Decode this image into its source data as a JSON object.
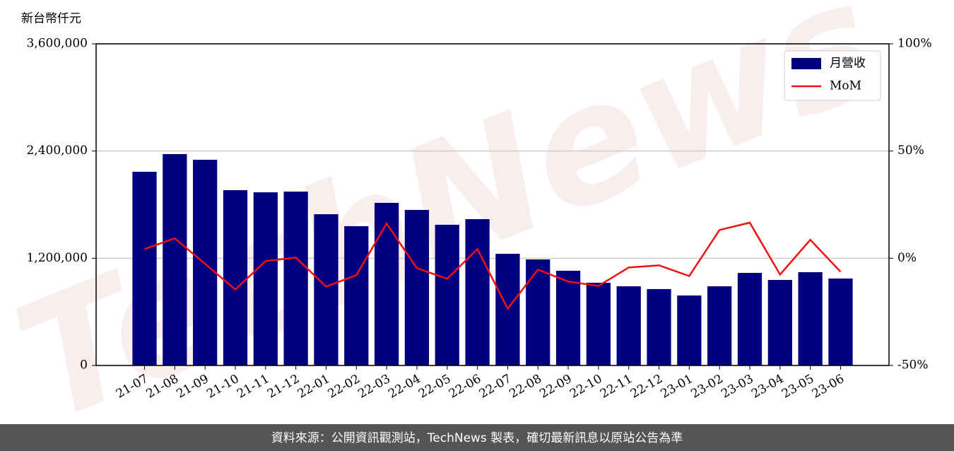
{
  "chart_data": {
    "type": "bar",
    "y_label": "新台幣仟元",
    "categories": [
      "21-07",
      "21-08",
      "21-09",
      "21-10",
      "21-11",
      "21-12",
      "22-01",
      "22-02",
      "22-03",
      "22-04",
      "22-05",
      "22-06",
      "22-07",
      "22-08",
      "22-09",
      "22-10",
      "22-11",
      "22-12",
      "23-01",
      "23-02",
      "23-03",
      "23-04",
      "23-05",
      "23-06"
    ],
    "series": [
      {
        "name": "月營收",
        "type": "bar",
        "axis": "y",
        "color": "#000080",
        "values": [
          2168000,
          2366000,
          2302000,
          1962000,
          1938000,
          1946000,
          1693000,
          1559000,
          1820000,
          1741000,
          1575000,
          1638000,
          1250000,
          1187000,
          1060000,
          926000,
          886000,
          855000,
          783000,
          886000,
          1036000,
          957000,
          1044000,
          973000
        ]
      },
      {
        "name": "MoM",
        "type": "line",
        "axis": "y2",
        "color": "#ee1111",
        "values": [
          4.3,
          9.3,
          -2.6,
          -14.6,
          -1.3,
          0.3,
          -13.2,
          -7.9,
          16.2,
          -4.6,
          -9.6,
          4.3,
          -23.5,
          -5.3,
          -10.9,
          -12.9,
          -4.3,
          -3.3,
          -8.3,
          13.2,
          16.6,
          -7.6,
          8.6,
          -6.3
        ]
      }
    ],
    "ylim": [
      0,
      3600000
    ],
    "yticks": [
      0,
      {
        "value": 1200000,
        "label": "1,200,000"
      },
      {
        "value": 2400000,
        "label": "2,400,000"
      },
      {
        "value": 3600000,
        "label": "3,600,000"
      }
    ],
    "y2lim": [
      -50,
      100
    ],
    "y2ticks": [
      {
        "value": -50,
        "label": "-50%"
      },
      {
        "value": 0,
        "label": "0%"
      },
      {
        "value": 50,
        "label": "50%"
      },
      {
        "value": 100,
        "label": "100%"
      }
    ],
    "grid": true,
    "legend": "upper right",
    "watermark": "TechNews"
  },
  "footer": "資料來源：公開資訊觀測站，TechNews 製表，確切最新訊息以原站公告為準"
}
